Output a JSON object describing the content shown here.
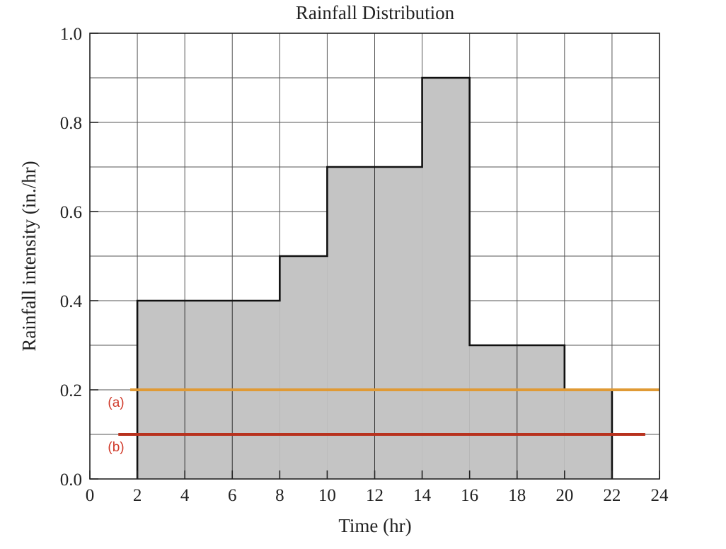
{
  "chart_data": {
    "type": "area",
    "title": "Rainfall Distribution",
    "xlabel": "Time (hr)",
    "ylabel": "Rainfall intensity (in./hr)",
    "xlim": [
      0,
      24
    ],
    "ylim": [
      0,
      1.0
    ],
    "grid": true,
    "x_ticks": [
      "0",
      "2",
      "4",
      "6",
      "8",
      "10",
      "12",
      "14",
      "16",
      "18",
      "20",
      "22",
      "24"
    ],
    "y_ticks": [
      "0.0",
      "0.2",
      "0.4",
      "0.6",
      "0.8",
      "1.0"
    ],
    "series": [
      {
        "type": "step",
        "steps": [
          {
            "x_start": 2,
            "x_end": 8,
            "value": 0.4
          },
          {
            "x_start": 8,
            "x_end": 10,
            "value": 0.5
          },
          {
            "x_start": 10,
            "x_end": 14,
            "value": 0.7
          },
          {
            "x_start": 14,
            "x_end": 16,
            "value": 0.9
          },
          {
            "x_start": 16,
            "x_end": 20,
            "value": 0.3
          },
          {
            "x_start": 20,
            "x_end": 22,
            "value": 0.2
          }
        ]
      }
    ],
    "reference_lines": [
      {
        "label": "(a)",
        "value": 0.2,
        "x_start": 1.7,
        "x_end": 24,
        "color": "#e09a35"
      },
      {
        "label": "(b)",
        "value": 0.1,
        "x_start": 1.2,
        "x_end": 23.4,
        "color": "#b8321e"
      }
    ],
    "colors": {
      "fill": "#c4c4c4",
      "outline": "#111111",
      "grid": "#555555",
      "label": "#d03a2a"
    }
  }
}
